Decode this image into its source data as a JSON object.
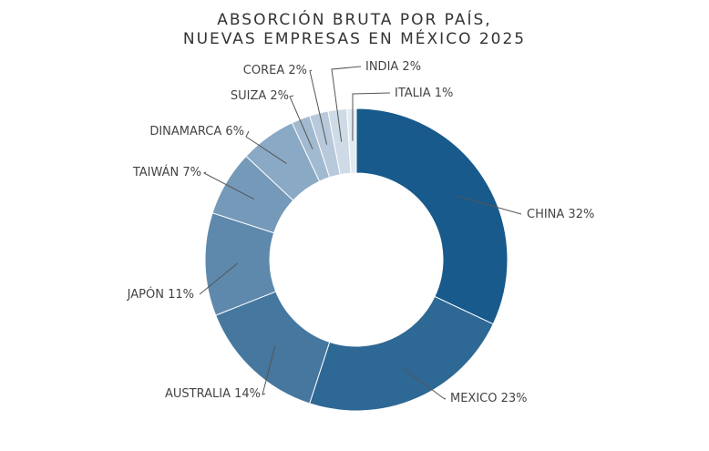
{
  "chart_data": {
    "type": "pie",
    "title": [
      "ABSORCIÓN BRUTA POR PAÍS,",
      "NUEVAS EMPRESAS EN MÉXICO 2025"
    ],
    "donut": true,
    "slices": [
      {
        "name": "CHINA",
        "value": 32,
        "label": "CHINA 32%",
        "color": "#185a8c"
      },
      {
        "name": "MEXICO",
        "value": 23,
        "label": "MEXICO 23%",
        "color": "#2e6895"
      },
      {
        "name": "AUSTRALIA",
        "value": 14,
        "label": "AUSTRALIA 14%",
        "color": "#45779f"
      },
      {
        "name": "JAPÓN",
        "value": 11,
        "label": "JAPÓN 11%",
        "color": "#5e89ad"
      },
      {
        "name": "TAIWÁN",
        "value": 7,
        "label": "TAIWÁN 7%",
        "color": "#7499b9"
      },
      {
        "name": "DINAMARCA",
        "value": 6,
        "label": "DINAMARCA 6%",
        "color": "#8aa9c4"
      },
      {
        "name": "SUIZA",
        "value": 2,
        "label": "SUIZA 2%",
        "color": "#a2bad0"
      },
      {
        "name": "COREA",
        "value": 2,
        "label": "COREA 2%",
        "color": "#b7c9da"
      },
      {
        "name": "INDIA",
        "value": 2,
        "label": "INDIA 2%",
        "color": "#cedbe6"
      },
      {
        "name": "ITALIA",
        "value": 1,
        "label": "ITALIA 1%",
        "color": "#e3ebf2"
      }
    ]
  }
}
